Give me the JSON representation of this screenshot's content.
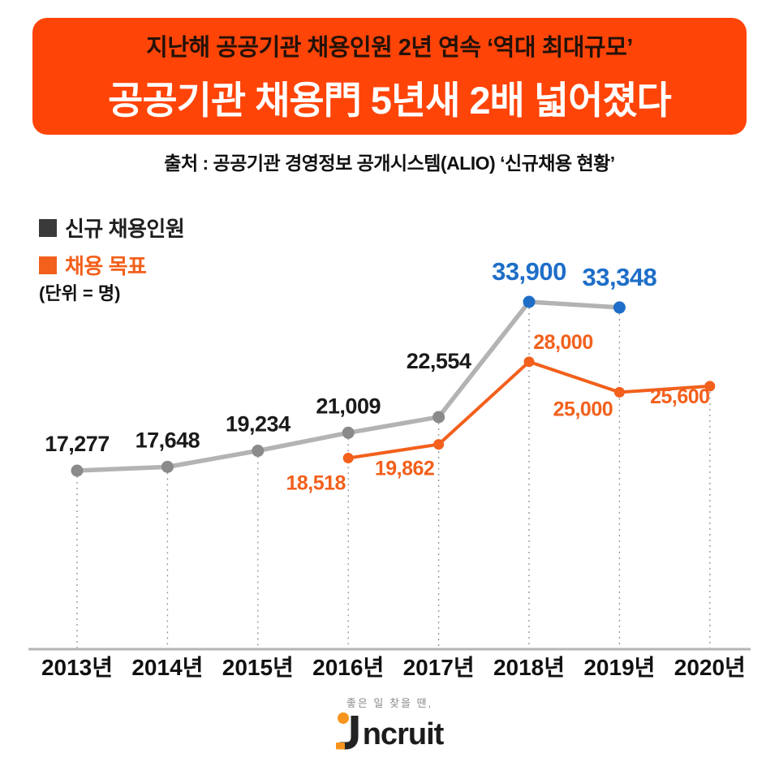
{
  "header": {
    "subtitle": "지난해 공공기관 채용인원 2년 연속 ‘역대 최대규모’",
    "title": "공공기관 채용門 5년새 2배 넓어졌다",
    "bg_color": "#FF4408",
    "subtitle_color": "#241208",
    "title_color": "#FFFFFF"
  },
  "source": "출처 : 공공기관 경영정보 공개시스템(ALIO) ‘신규채용 현황’",
  "legend": {
    "items": [
      {
        "label": "신규 채용인원",
        "swatch_color": "#3A3A3A",
        "text_color": "#1F1F1F"
      },
      {
        "label": "채용 목표",
        "swatch_color": "#F2601C",
        "text_color": "#F2601C"
      }
    ],
    "unit": "(단위 = 명)"
  },
  "chart_data": {
    "type": "line",
    "categories": [
      "2013년",
      "2014년",
      "2015년",
      "2016년",
      "2017년",
      "2018년",
      "2019년",
      "2020년"
    ],
    "series": [
      {
        "name": "신규 채용인원",
        "color": "#B3B3B3",
        "point_color": "#8A8A8A",
        "label_color": "#1A1A1A",
        "highlight_color": "#1E6EC8",
        "highlight_indices": [
          5,
          6
        ],
        "values": [
          17277,
          17648,
          19234,
          21009,
          22554,
          33900,
          33348,
          null
        ],
        "labels": [
          "17,277",
          "17,648",
          "19,234",
          "21,009",
          "22,554",
          "33,900",
          "33,348",
          null
        ]
      },
      {
        "name": "채용 목표",
        "color": "#F2601C",
        "point_color": "#F2601C",
        "label_color": "#F2601C",
        "values": [
          null,
          null,
          null,
          18518,
          19862,
          28000,
          25000,
          25600
        ],
        "labels": [
          null,
          null,
          null,
          "18,518",
          "19,862",
          "28,000",
          "25,000",
          "25,600"
        ]
      }
    ],
    "ylim": [
      15000,
      36000
    ],
    "grid": "dotted-vertical-drop-lines",
    "legend_position": "top-left",
    "unit": "명"
  },
  "footer": {
    "tagline": "좋은 일 찾을 땐,",
    "logo_text": "ncruit",
    "logo_color": "#1C1C1C",
    "accent_color": "#F7941D"
  }
}
